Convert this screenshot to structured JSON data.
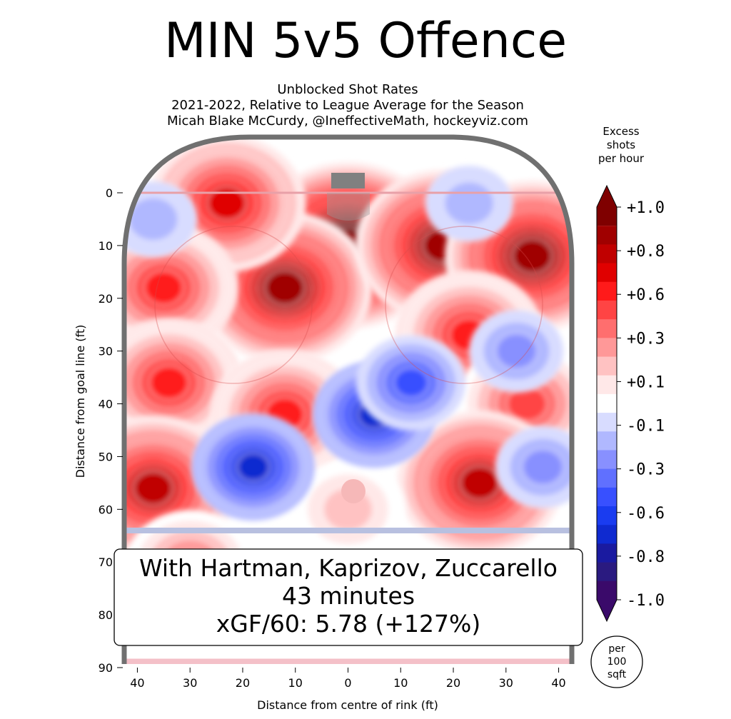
{
  "header": {
    "title": "MIN 5v5 Offence",
    "subtitle_1": "Unblocked Shot Rates",
    "subtitle_2": "2021-2022, Relative to League Average for the Season",
    "subtitle_3": "Micah Blake McCurdy, @IneffectiveMath, hockeyviz.com"
  },
  "chart_data": {
    "type": "heatmap",
    "xlabel": "Distance from centre of rink (ft)",
    "ylabel": "Distance from goal line (ft)",
    "x_ticks": [
      "40",
      "30",
      "20",
      "10",
      "0",
      "10",
      "20",
      "30",
      "40"
    ],
    "y_ticks": [
      "0",
      "10",
      "20",
      "30",
      "40",
      "50",
      "60",
      "70",
      "80",
      "90"
    ],
    "xlim": [
      -42.5,
      42.5
    ],
    "ylim": [
      0,
      90
    ],
    "colorbar": {
      "title": "Excess shots per hour",
      "title_lines": [
        "Excess",
        "shots",
        "per hour"
      ],
      "tick_labels": [
        "+1.0",
        "+0.8",
        "+0.6",
        "+0.3",
        "+0.1",
        "-0.1",
        "-0.3",
        "-0.6",
        "-0.8",
        "-1.0"
      ],
      "levels": [
        1.0,
        0.9,
        0.8,
        0.7,
        0.6,
        0.5,
        0.4,
        0.3,
        0.2,
        0.1,
        0.0,
        -0.1,
        -0.2,
        -0.3,
        -0.4,
        -0.5,
        -0.6,
        -0.7,
        -0.8,
        -0.9,
        -1.0
      ],
      "colors": [
        "#7f0000",
        "#a00000",
        "#c00000",
        "#e00000",
        "#ff1a1a",
        "#ff4444",
        "#ff6e6e",
        "#ff9898",
        "#ffc2c2",
        "#ffe8e8",
        "#ffffff",
        "#d8dcff",
        "#b0b8ff",
        "#8890ff",
        "#6070ff",
        "#3850ff",
        "#1a3cf0",
        "#0f2ad0",
        "#1a1aa0",
        "#2a1a80",
        "#3a0a6a"
      ]
    },
    "regions": [
      {
        "kind": "hot",
        "x": 0,
        "y": 10,
        "value": 1.2
      },
      {
        "kind": "hot",
        "x": -12,
        "y": 18,
        "value": 1.0
      },
      {
        "kind": "hot",
        "x": 18,
        "y": 10,
        "value": 1.0
      },
      {
        "kind": "hot",
        "x": 35,
        "y": 12,
        "value": 1.0
      },
      {
        "kind": "hot",
        "x": -23,
        "y": 2,
        "value": 0.8
      },
      {
        "kind": "hot",
        "x": -35,
        "y": 18,
        "value": 0.7
      },
      {
        "kind": "hot",
        "x": -34,
        "y": 36,
        "value": 0.7
      },
      {
        "kind": "hot",
        "x": -12,
        "y": 42,
        "value": 0.7
      },
      {
        "kind": "hot",
        "x": 23,
        "y": 27,
        "value": 0.7
      },
      {
        "kind": "hot",
        "x": 34,
        "y": 40,
        "value": 0.6
      },
      {
        "kind": "hot",
        "x": 25,
        "y": 55,
        "value": 0.9
      },
      {
        "kind": "hot",
        "x": -37,
        "y": 56,
        "value": 0.9
      },
      {
        "kind": "hot",
        "x": -30,
        "y": 71,
        "value": 0.5
      },
      {
        "kind": "hot",
        "x": 0,
        "y": 60,
        "value": 0.3
      },
      {
        "kind": "cold",
        "x": -18,
        "y": 52,
        "value": -0.7
      },
      {
        "kind": "cold",
        "x": 5,
        "y": 42,
        "value": -0.7
      },
      {
        "kind": "cold",
        "x": 12,
        "y": 36,
        "value": -0.5
      },
      {
        "kind": "cold",
        "x": 32,
        "y": 30,
        "value": -0.3
      },
      {
        "kind": "cold",
        "x": 37,
        "y": 52,
        "value": -0.3
      },
      {
        "kind": "cold",
        "x": -37,
        "y": 5,
        "value": -0.2
      },
      {
        "kind": "cold",
        "x": 23,
        "y": 2,
        "value": -0.2
      }
    ]
  },
  "info_box": {
    "line1": "With Hartman, Kaprizov, Zuccarello",
    "line2": "43 minutes",
    "line3": "xGF/60: 5.78 (+127%)"
  },
  "per_circle": {
    "line1": "per",
    "line2": "100",
    "line3": "sqft"
  }
}
